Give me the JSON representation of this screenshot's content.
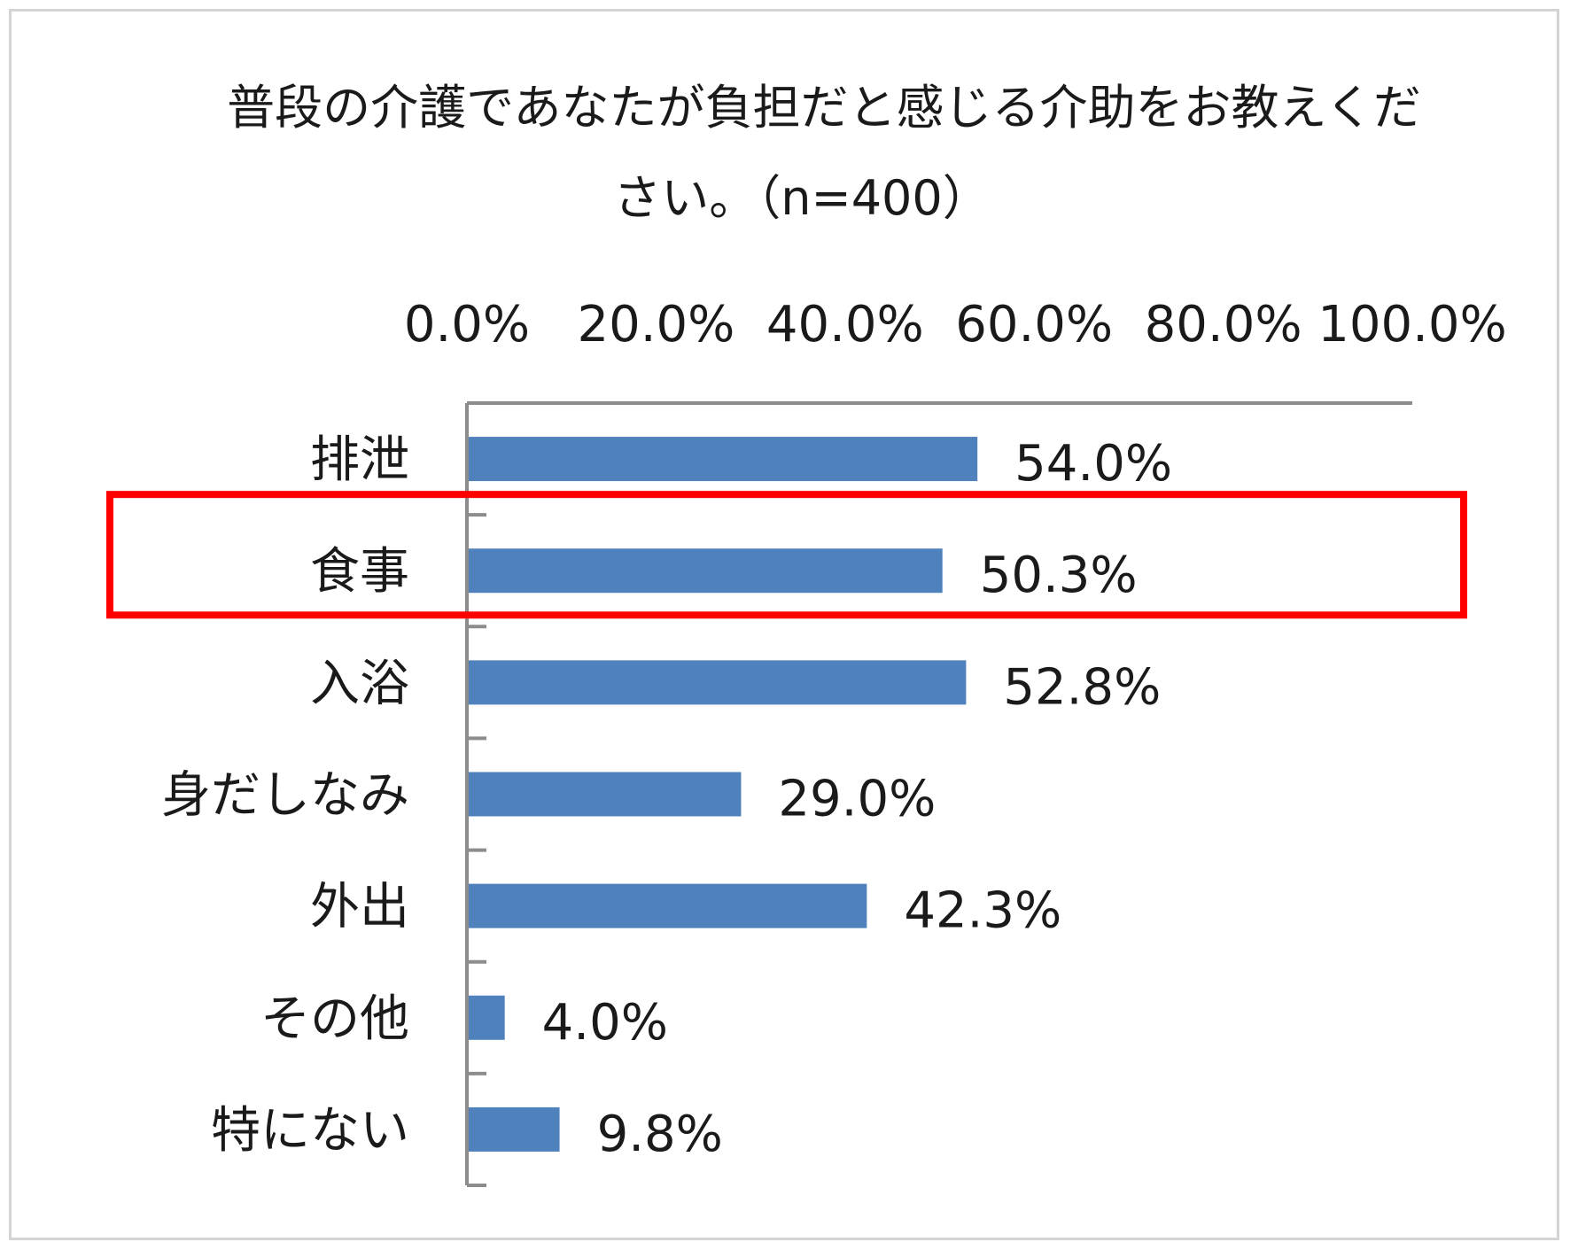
{
  "chart_data": {
    "type": "bar",
    "orientation": "horizontal",
    "title_lines": [
      "普段の介護であなたが負担だと感じる介助をお教えくだ",
      "さい。（n=400）"
    ],
    "xlim": [
      0,
      100
    ],
    "x_ticks": [
      "0.0%",
      "20.0%",
      "40.0%",
      "60.0%",
      "80.0%",
      "100.0%"
    ],
    "x_axis_position": "top",
    "categories": [
      "排泄",
      "食事",
      "入浴",
      "身だしなみ",
      "外出",
      "その他",
      "特にない"
    ],
    "values": [
      54.0,
      50.3,
      52.8,
      29.0,
      42.3,
      4.0,
      9.8
    ],
    "data_labels": [
      "54.0%",
      "50.3%",
      "52.8%",
      "29.0%",
      "42.3%",
      "4.0%",
      "9.8%"
    ],
    "highlighted_category": "食事",
    "grid": false,
    "legend": "none"
  },
  "colors": {
    "bar": "#4f81bd",
    "axis": "#8c8c8c",
    "highlight": "#ff0000",
    "text": "#1a1a1a",
    "frame": "#d4d4d4"
  }
}
